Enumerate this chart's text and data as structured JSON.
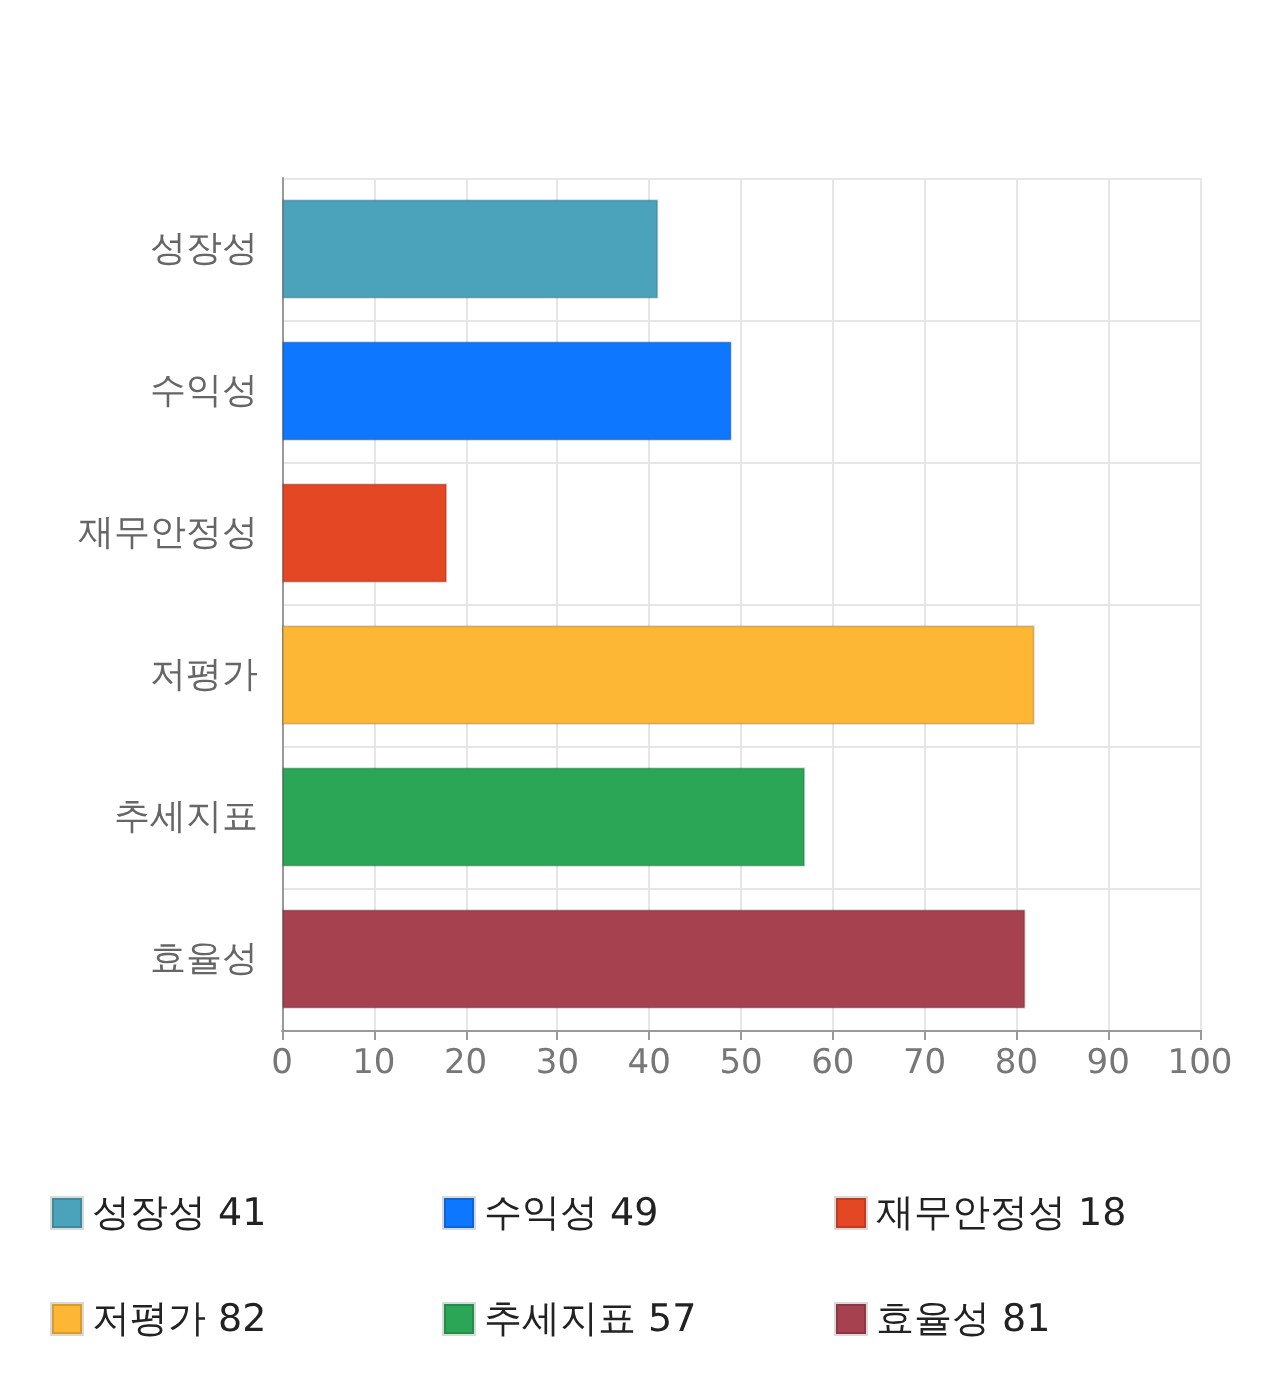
{
  "chart_data": {
    "type": "bar",
    "orientation": "horizontal",
    "stacked": true,
    "categories": [
      "성장성",
      "수익성",
      "재무안정성",
      "저평가",
      "추세지표",
      "효율성"
    ],
    "series": [
      {
        "name": "성장성 41",
        "color": "#4aa3bb",
        "values": [
          41,
          null,
          null,
          null,
          null,
          null
        ]
      },
      {
        "name": "수익성 49",
        "color": "#0d77ff",
        "values": [
          null,
          49,
          null,
          null,
          null,
          null
        ]
      },
      {
        "name": "재무안정성 18",
        "color": "#e34724",
        "values": [
          null,
          null,
          18,
          null,
          null,
          null
        ]
      },
      {
        "name": "저평가 82",
        "color": "#fdb734",
        "values": [
          null,
          null,
          null,
          82,
          null,
          null
        ]
      },
      {
        "name": "추세지표 57",
        "color": "#2ba657",
        "values": [
          null,
          null,
          null,
          null,
          57,
          null
        ]
      },
      {
        "name": "효율성 81",
        "color": "#a6414f",
        "values": [
          null,
          null,
          null,
          null,
          null,
          81
        ]
      }
    ],
    "xlim": [
      0,
      100
    ],
    "xticks": [
      0,
      10,
      20,
      30,
      40,
      50,
      60,
      70,
      80,
      90,
      100
    ],
    "grid": true,
    "legend": "bottom"
  }
}
